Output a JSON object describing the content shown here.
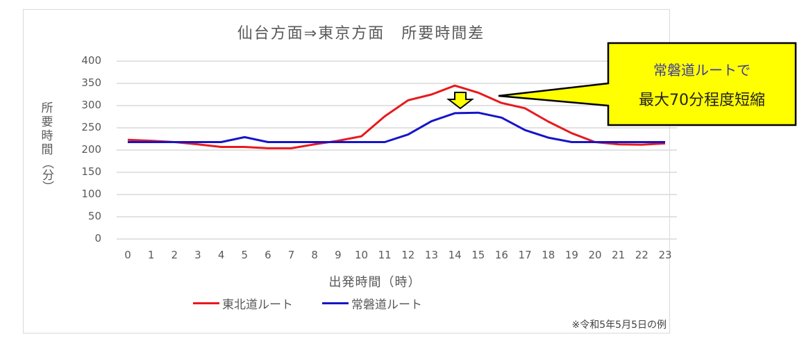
{
  "chart_data": {
    "type": "line",
    "title": "仙台方面⇒東京方面　所要時間差",
    "xlabel": "出発時間（時）",
    "ylabel": "所要時間（分）",
    "ylim": [
      0,
      400
    ],
    "yticks": [
      0,
      50,
      100,
      150,
      200,
      250,
      300,
      350,
      400
    ],
    "grid": true,
    "legend_position": "bottom",
    "x": [
      0,
      1,
      2,
      3,
      4,
      5,
      6,
      7,
      8,
      9,
      10,
      11,
      12,
      13,
      14,
      15,
      16,
      17,
      18,
      19,
      20,
      21,
      22,
      23
    ],
    "series": [
      {
        "name": "東北道ルート",
        "color": "#e8191d",
        "values": [
          223,
          221,
          218,
          213,
          207,
          207,
          204,
          204,
          213,
          221,
          231,
          276,
          312,
          325,
          345,
          329,
          306,
          294,
          264,
          238,
          218,
          213,
          212,
          215
        ]
      },
      {
        "name": "常磐道ルート",
        "color": "#1515c8",
        "values": [
          218,
          218,
          218,
          218,
          218,
          229,
          218,
          218,
          218,
          218,
          218,
          218,
          235,
          265,
          283,
          284,
          273,
          245,
          228,
          218,
          218,
          218,
          218,
          218
        ]
      }
    ],
    "annotations": [
      {
        "type": "callout",
        "lines": [
          "常磐道ルートで",
          "最大70分程度短縮"
        ],
        "background": "#ffff00",
        "points_to_hour": 15
      },
      {
        "type": "down-arrow",
        "hour": 14,
        "color": "#ffff00"
      }
    ],
    "footnote": "※令和5年5月5日の例"
  },
  "labels": {
    "title": "仙台方面⇒東京方面　所要時間差",
    "ylabel_chars": [
      "所",
      "要",
      "時",
      "間"
    ],
    "ylabel_paren": "（分）",
    "xlabel": "出発時間（時）",
    "legend": [
      "東北道ルート",
      "常磐道ルート"
    ],
    "note": "※令和5年5月5日の例",
    "callout_line1": "常磐道ルートで",
    "callout_line2": "最大70分程度短縮"
  }
}
